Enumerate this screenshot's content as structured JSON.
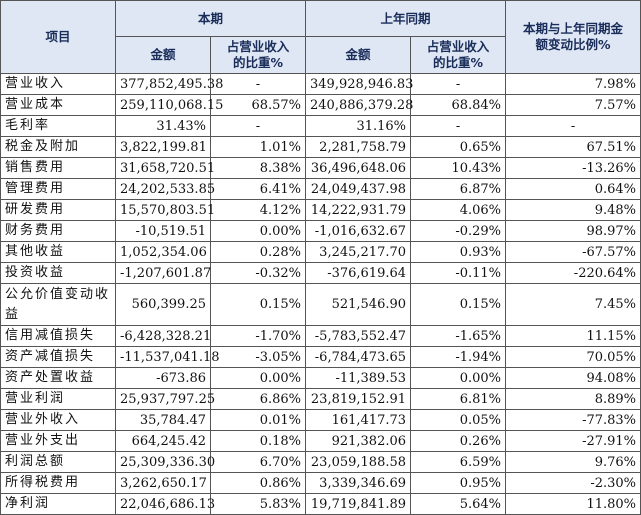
{
  "table": {
    "header": {
      "row1": [
        "项目",
        "本期",
        "上年同期",
        "本期与上年同期金额变动比例%"
      ],
      "row2": [
        "金额",
        "占营业收入的比重%",
        "金额",
        "占营业收入的比重%"
      ]
    },
    "rows": [
      [
        "营业收入",
        "377,852,495.38",
        "-",
        "349,928,946.83",
        "-",
        "7.98%"
      ],
      [
        "营业成本",
        "259,110,068.15",
        "68.57%",
        "240,886,379.28",
        "68.84%",
        "7.57%"
      ],
      [
        "毛利率",
        "31.43%",
        "-",
        "31.16%",
        "-",
        "-"
      ],
      [
        "税金及附加",
        "3,822,199.81",
        "1.01%",
        "2,281,758.79",
        "0.65%",
        "67.51%"
      ],
      [
        "销售费用",
        "31,658,720.51",
        "8.38%",
        "36,496,648.06",
        "10.43%",
        "-13.26%"
      ],
      [
        "管理费用",
        "24,202,533.85",
        "6.41%",
        "24,049,437.98",
        "6.87%",
        "0.64%"
      ],
      [
        "研发费用",
        "15,570,803.51",
        "4.12%",
        "14,222,931.79",
        "4.06%",
        "9.48%"
      ],
      [
        "财务费用",
        "-10,519.51",
        "0.00%",
        "-1,016,632.67",
        "-0.29%",
        "98.97%"
      ],
      [
        "其他收益",
        "1,052,354.06",
        "0.28%",
        "3,245,217.70",
        "0.93%",
        "-67.57%"
      ],
      [
        "投资收益",
        "-1,207,601.87",
        "-0.32%",
        "-376,619.64",
        "-0.11%",
        "-220.64%"
      ],
      [
        "公允价值变动收益",
        "560,399.25",
        "0.15%",
        "521,546.90",
        "0.15%",
        "7.45%"
      ],
      [
        "信用减值损失",
        "-6,428,328.21",
        "-1.70%",
        "-5,783,552.47",
        "-1.65%",
        "11.15%"
      ],
      [
        "资产减值损失",
        "-11,537,041.18",
        "-3.05%",
        "-6,784,473.65",
        "-1.94%",
        "70.05%"
      ],
      [
        "资产处置收益",
        "-673.86",
        "0.00%",
        "-11,389.53",
        "0.00%",
        "94.08%"
      ],
      [
        "营业利润",
        "25,937,797.25",
        "6.86%",
        "23,819,152.91",
        "6.81%",
        "8.89%"
      ],
      [
        "营业外收入",
        "35,784.47",
        "0.01%",
        "161,417.73",
        "0.05%",
        "-77.83%"
      ],
      [
        "营业外支出",
        "664,245.42",
        "0.18%",
        "921,382.06",
        "0.26%",
        "-27.91%"
      ],
      [
        "利润总额",
        "25,309,336.30",
        "6.70%",
        "23,059,188.58",
        "6.59%",
        "9.76%"
      ],
      [
        "所得税费用",
        "3,262,650.17",
        "0.86%",
        "3,339,346.69",
        "0.95%",
        "-2.30%"
      ],
      [
        "净利润",
        "22,046,686.13",
        "5.83%",
        "19,719,841.89",
        "5.64%",
        "11.80%"
      ]
    ]
  }
}
